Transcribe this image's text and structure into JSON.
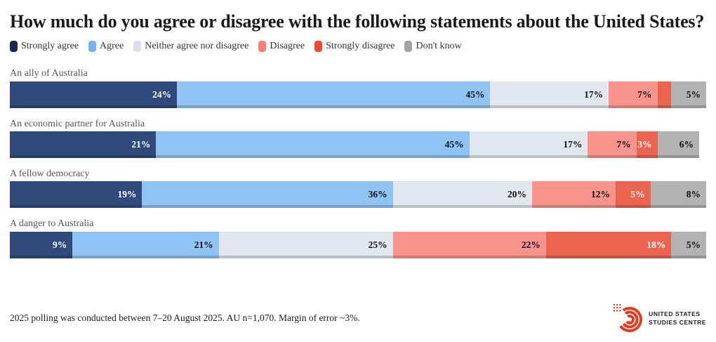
{
  "title": "How much do you agree or disagree with the following statements about the United States?",
  "footnote": "2025 polling was conducted between 7–20 August 2025. AU n=1,070. Margin of error ~3%.",
  "logo": {
    "line1": "UNITED STATES",
    "line2": "STUDIES CENTRE",
    "mark_color": "#E23B22",
    "dot_color": "#B5361F"
  },
  "chart_data": {
    "type": "bar",
    "orientation": "horizontal-stacked",
    "title": "How much do you agree or disagree with the following statements about the United States?",
    "categories": [
      "An ally of Australia",
      "An economic partner for Australia",
      "A fellow democracy",
      "A danger to Australia"
    ],
    "series": [
      {
        "name": "Strongly agree",
        "legend_color": "#15294F",
        "bar_color": "#304A7C",
        "label_color": "#ffffff",
        "values": [
          24,
          21,
          19,
          9
        ]
      },
      {
        "name": "Agree",
        "legend_color": "#73B4F0",
        "bar_color": "#8FC3F4",
        "label_color": "#111111",
        "values": [
          45,
          45,
          36,
          21
        ]
      },
      {
        "name": "Neither agree nor disagree",
        "legend_color": "#DBE0EA",
        "bar_color": "#E2E6EE",
        "label_color": "#111111",
        "values": [
          17,
          17,
          20,
          25
        ]
      },
      {
        "name": "Disagree",
        "legend_color": "#F87E78",
        "bar_color": "#F9948D",
        "label_color": "#111111",
        "values": [
          7,
          7,
          12,
          22
        ]
      },
      {
        "name": "Strongly disagree",
        "legend_color": "#EA4A31",
        "bar_color": "#EA6450",
        "label_color": "#ffffff",
        "values": [
          2,
          3,
          5,
          18
        ]
      },
      {
        "name": "Don't know",
        "legend_color": "#A2A2A2",
        "bar_color": "#B3B2B2",
        "label_color": "#111111",
        "values": [
          5,
          6,
          8,
          5
        ]
      }
    ],
    "value_suffix": "%",
    "min_labeled_value": 3,
    "xlim": [
      0,
      100
    ],
    "grid": false,
    "legend_position": "top"
  }
}
